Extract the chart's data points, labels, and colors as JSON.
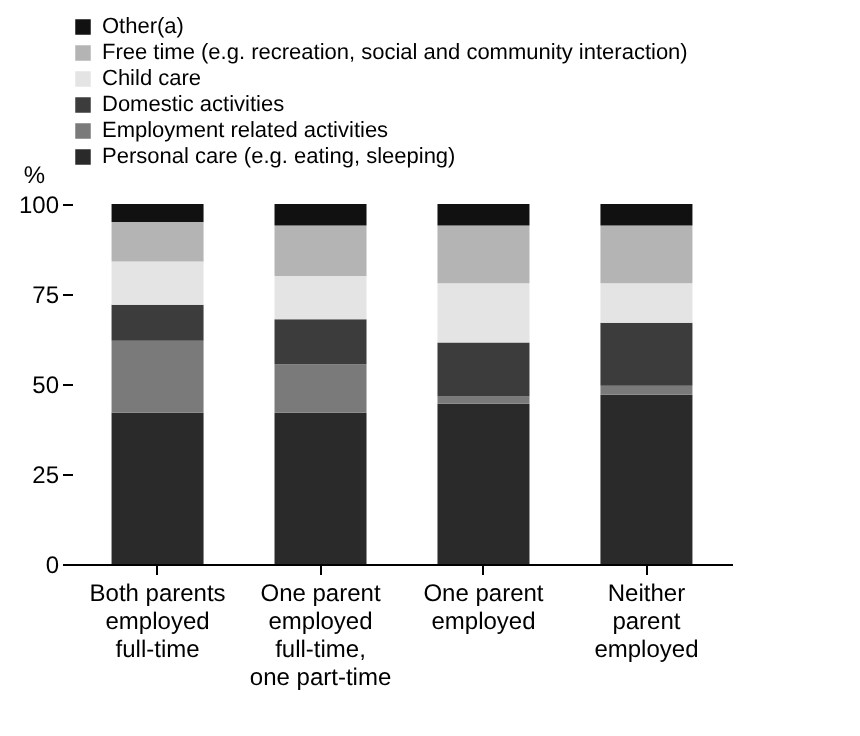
{
  "chart_data": {
    "type": "bar",
    "stacked": true,
    "ylabel": "%",
    "categories": [
      "Both parents employed full-time",
      "One parent employed full-time, one part-time",
      "One parent employed",
      "Neither parent employed"
    ],
    "series": [
      {
        "name": "Personal care (e.g. eating, sleeping)",
        "color": "#2a2a2a",
        "values": [
          42,
          42,
          44.5,
          47
        ]
      },
      {
        "name": "Employment related activities",
        "color": "#7a7a7a",
        "values": [
          20,
          13.5,
          2,
          2.5
        ]
      },
      {
        "name": "Domestic activities",
        "color": "#3c3c3c",
        "values": [
          10,
          12.5,
          15,
          17.5
        ]
      },
      {
        "name": "Child care",
        "color": "#e4e4e4",
        "values": [
          12,
          12,
          16.5,
          11
        ]
      },
      {
        "name": "Free time (e.g. recreation, social and community interaction)",
        "color": "#b4b4b4",
        "values": [
          11,
          14,
          16,
          16
        ]
      },
      {
        "name": "Other(a)",
        "color": "#111111",
        "values": [
          5,
          6,
          6,
          6
        ]
      }
    ],
    "ylim": [
      0,
      100
    ],
    "yticks": [
      0,
      25,
      50,
      75,
      100
    ],
    "legend": "top left"
  }
}
